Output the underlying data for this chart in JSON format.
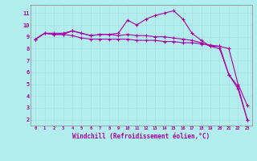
{
  "xlabel": "Windchill (Refroidissement éolien,°C)",
  "background_color": "#b2eeee",
  "line_color": "#aa00aa",
  "grid_color": "#cceeee",
  "xlim": [
    -0.5,
    23.5
  ],
  "ylim": [
    1.5,
    11.7
  ],
  "xticks": [
    0,
    1,
    2,
    3,
    4,
    5,
    6,
    7,
    8,
    9,
    10,
    11,
    12,
    13,
    14,
    15,
    16,
    17,
    18,
    19,
    20,
    21,
    22,
    23
  ],
  "yticks": [
    2,
    3,
    4,
    5,
    6,
    7,
    8,
    9,
    10,
    11
  ],
  "series1_x": [
    0,
    1,
    2,
    3,
    4,
    5,
    6,
    7,
    8,
    9,
    10,
    11,
    12,
    13,
    14,
    15,
    16,
    17,
    18,
    19,
    20,
    21,
    22,
    23
  ],
  "series1_y": [
    8.8,
    9.3,
    9.3,
    9.3,
    9.5,
    9.3,
    9.1,
    9.2,
    9.2,
    9.3,
    10.4,
    10.0,
    10.5,
    10.8,
    11.0,
    11.2,
    10.5,
    9.3,
    8.7,
    8.2,
    8.2,
    5.8,
    4.8,
    2.0
  ],
  "series2_x": [
    0,
    1,
    2,
    3,
    4,
    5,
    6,
    7,
    8,
    9,
    10,
    11,
    12,
    13,
    14,
    15,
    16,
    17,
    18,
    19,
    20,
    21,
    22,
    23
  ],
  "series2_y": [
    8.8,
    9.3,
    9.2,
    9.2,
    9.1,
    8.9,
    8.8,
    8.8,
    8.8,
    8.8,
    8.8,
    8.7,
    8.7,
    8.7,
    8.6,
    8.6,
    8.5,
    8.5,
    8.4,
    8.3,
    8.2,
    8.0,
    5.0,
    3.2
  ],
  "series3_x": [
    0,
    1,
    2,
    3,
    4,
    5,
    6,
    7,
    8,
    9,
    10,
    11,
    12,
    13,
    14,
    15,
    16,
    17,
    18,
    19,
    20,
    21,
    22,
    23
  ],
  "series3_y": [
    8.8,
    9.3,
    9.2,
    9.2,
    9.5,
    9.3,
    9.1,
    9.2,
    9.2,
    9.1,
    9.2,
    9.1,
    9.1,
    9.0,
    9.0,
    8.9,
    8.8,
    8.7,
    8.5,
    8.2,
    8.0,
    5.8,
    4.6,
    2.0
  ]
}
